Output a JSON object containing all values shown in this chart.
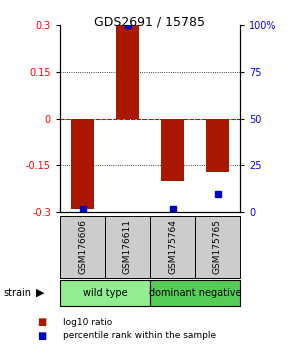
{
  "title": "GDS2691 / 15785",
  "samples": [
    "GSM176606",
    "GSM176611",
    "GSM175764",
    "GSM175765"
  ],
  "log10_ratio": [
    -0.29,
    0.3,
    -0.2,
    -0.17
  ],
  "percentile_rank": [
    2,
    100,
    2,
    10
  ],
  "groups": [
    {
      "label": "wild type",
      "samples": [
        0,
        1
      ],
      "color": "#90ee90"
    },
    {
      "label": "dominant negative",
      "samples": [
        2,
        3
      ],
      "color": "#55cc55"
    }
  ],
  "ylim_left": [
    -0.3,
    0.3
  ],
  "ylim_right": [
    0,
    100
  ],
  "yticks_left": [
    -0.3,
    -0.15,
    0,
    0.15,
    0.3
  ],
  "yticks_right": [
    0,
    25,
    50,
    75,
    100
  ],
  "ytick_labels_right": [
    "0",
    "25",
    "50",
    "75",
    "100%"
  ],
  "ytick_labels_left": [
    "-0.3",
    "-0.15",
    "0",
    "0.15",
    "0.3"
  ],
  "bar_color": "#aa1800",
  "dot_color": "#0000cc",
  "zero_line_color": "#cc0000",
  "grid_color": "#333333",
  "bg_color": "#ffffff",
  "sample_box_color": "#cccccc",
  "legend_red_label": "log10 ratio",
  "legend_blue_label": "percentile rank within the sample",
  "strain_label": "strain",
  "bar_width": 0.5
}
